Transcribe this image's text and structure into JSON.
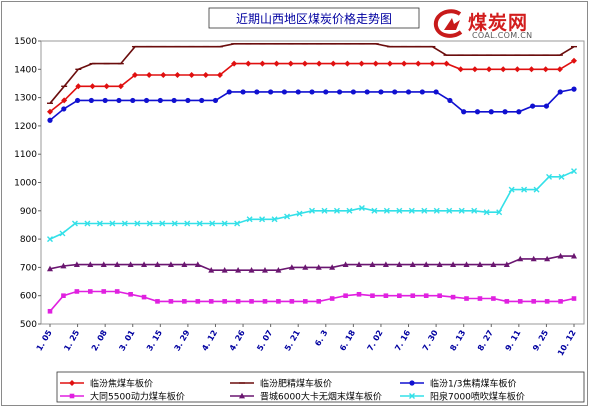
{
  "brand": {
    "name": "煤炭网",
    "url": "COAL.COM.CN"
  },
  "chart_data": {
    "type": "line",
    "title": "近期山西地区煤炭价格走势图",
    "ylim": [
      500,
      1500
    ],
    "yticks": [
      500,
      600,
      700,
      800,
      900,
      1000,
      1100,
      1200,
      1300,
      1400,
      1500
    ],
    "grid": false,
    "legend_position": "bottom",
    "x_tick_labels": [
      "1. 05",
      "1. 25",
      "2. 08",
      "3. 01",
      "3. 15",
      "3. 29",
      "4. 12",
      "4. 26",
      "5. 07",
      "5. 21",
      "6. 3",
      "6. 18",
      "7. 02",
      "7. 16",
      "7. 30",
      "8. 13",
      "8. 27",
      "9. 11",
      "9. 25",
      "10. 12"
    ],
    "series": [
      {
        "name": "临汾焦煤车板价",
        "color": "#e01010",
        "marker": "diamond",
        "values": [
          1250,
          1290,
          1340,
          1340,
          1340,
          1340,
          1380,
          1380,
          1380,
          1380,
          1380,
          1380,
          1380,
          1420,
          1420,
          1420,
          1420,
          1420,
          1420,
          1420,
          1420,
          1420,
          1420,
          1420,
          1420,
          1420,
          1420,
          1420,
          1420,
          1400,
          1400,
          1400,
          1400,
          1400,
          1400,
          1400,
          1400,
          1430
        ]
      },
      {
        "name": "临汾肥精煤车板价",
        "color": "#6b0d0d",
        "marker": "dash",
        "values": [
          1280,
          1340,
          1400,
          1420,
          1420,
          1420,
          1480,
          1480,
          1480,
          1480,
          1480,
          1480,
          1480,
          1490,
          1490,
          1490,
          1490,
          1490,
          1490,
          1490,
          1490,
          1490,
          1490,
          1490,
          1480,
          1480,
          1480,
          1480,
          1450,
          1450,
          1450,
          1450,
          1450,
          1450,
          1450,
          1450,
          1450,
          1480
        ]
      },
      {
        "name": "临汾1/3焦精煤车板价",
        "color": "#1010d0",
        "marker": "circle",
        "values": [
          1220,
          1260,
          1290,
          1290,
          1290,
          1290,
          1290,
          1290,
          1290,
          1290,
          1290,
          1290,
          1290,
          1320,
          1320,
          1320,
          1320,
          1320,
          1320,
          1320,
          1320,
          1320,
          1320,
          1320,
          1320,
          1320,
          1320,
          1320,
          1320,
          1290,
          1250,
          1250,
          1250,
          1250,
          1250,
          1270,
          1270,
          1320,
          1330
        ]
      },
      {
        "name": "大同5500动力煤车板价",
        "color": "#e020e0",
        "marker": "square",
        "values": [
          545,
          600,
          615,
          615,
          615,
          615,
          605,
          595,
          580,
          580,
          580,
          580,
          580,
          580,
          580,
          580,
          580,
          580,
          580,
          580,
          580,
          590,
          600,
          605,
          600,
          600,
          600,
          600,
          600,
          600,
          595,
          590,
          590,
          590,
          580,
          580,
          580,
          580,
          580,
          590
        ]
      },
      {
        "name": "晋城6000大卡无烟末煤车板价",
        "color": "#6a1670",
        "marker": "triangle",
        "values": [
          695,
          705,
          710,
          710,
          710,
          710,
          710,
          710,
          710,
          710,
          710,
          710,
          690,
          690,
          690,
          690,
          690,
          690,
          700,
          700,
          700,
          700,
          710,
          710,
          710,
          710,
          710,
          710,
          710,
          710,
          710,
          710,
          710,
          710,
          710,
          730,
          730,
          730,
          740,
          740
        ]
      },
      {
        "name": "阳泉7000喷吹煤车板价",
        "color": "#33e0e8",
        "marker": "x",
        "values": [
          800,
          820,
          855,
          855,
          855,
          855,
          855,
          855,
          855,
          855,
          855,
          855,
          855,
          855,
          855,
          855,
          870,
          870,
          870,
          880,
          890,
          900,
          900,
          900,
          900,
          910,
          900,
          900,
          900,
          900,
          900,
          900,
          900,
          900,
          900,
          895,
          895,
          975,
          975,
          975,
          1020,
          1020,
          1040
        ]
      }
    ]
  }
}
